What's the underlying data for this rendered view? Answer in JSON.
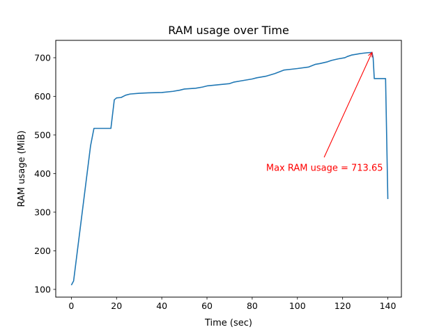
{
  "chart_data": {
    "type": "line",
    "title": "RAM usage over Time",
    "xlabel": "Time (sec)",
    "ylabel": "RAM usage (MiB)",
    "xlim": [
      -6.9,
      146
    ],
    "ylim": [
      80,
      745
    ],
    "xticks": [
      0,
      20,
      40,
      60,
      80,
      100,
      120,
      140
    ],
    "yticks": [
      100,
      200,
      300,
      400,
      500,
      600,
      700
    ],
    "grid": false,
    "line_color": "#1f77b4",
    "series": [
      {
        "x": [
          0,
          1,
          8.5,
          10,
          17.5,
          19,
          20,
          22,
          24,
          26,
          30,
          34,
          40,
          45,
          48,
          50,
          55,
          58,
          60,
          65,
          70,
          72,
          75,
          80,
          82,
          84,
          86,
          90,
          94,
          97,
          100,
          105,
          108,
          110,
          113,
          115,
          118,
          121,
          122,
          124,
          125,
          127,
          128,
          131,
          133,
          133.5,
          134,
          138,
          139,
          140
        ],
        "y": [
          111,
          122,
          472,
          517,
          517,
          591,
          596,
          597,
          603,
          606,
          608,
          609,
          610,
          613,
          616,
          619,
          621,
          624,
          627,
          630,
          633,
          637,
          640,
          645,
          648,
          650,
          652,
          659,
          668,
          670,
          672,
          676,
          683,
          685,
          689,
          693,
          697,
          700,
          703,
          707,
          708,
          710,
          711,
          713,
          713.65,
          700,
          646,
          646,
          646,
          334
        ]
      }
    ],
    "annotation": {
      "text": "Max RAM usage = 713.65",
      "color": "#ff0000",
      "point": [
        133,
        713.65
      ],
      "text_at": [
        112,
        415
      ]
    }
  }
}
